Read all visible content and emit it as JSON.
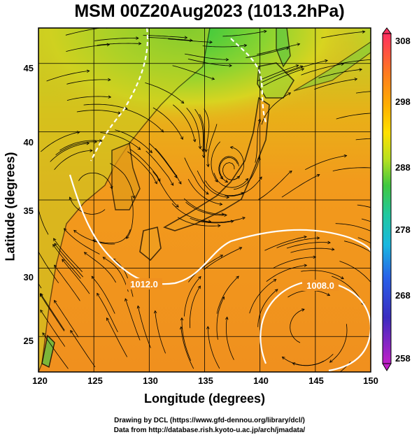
{
  "title": "MSM 00Z20Aug2023 (1013.2hPa)",
  "map": {
    "xlabel": "Longitude (degrees)",
    "ylabel": "Latitude  (degrees)",
    "lon_range": [
      120,
      150
    ],
    "lat_range": [
      22.4,
      47.6
    ],
    "lon_ticks": [
      "120",
      "125",
      "130",
      "135",
      "140",
      "145",
      "150"
    ],
    "lat_ticks": [
      "45",
      "40",
      "35",
      "30",
      "25"
    ],
    "contour_labels": [
      "1012.0",
      "1008.0"
    ]
  },
  "colorbar": {
    "ticks": [
      "308",
      "298",
      "288",
      "278",
      "268",
      "258"
    ],
    "colors": [
      "#ff3060",
      "#ff7a1e",
      "#ffb000",
      "#ffe000",
      "#c8e020",
      "#52c840",
      "#20c890",
      "#18b8e0",
      "#2860e8",
      "#3a2cc0",
      "#c020c8"
    ]
  },
  "credits": {
    "line1": "Drawing by DCL (https://www.gfd-dennou.org/library/dcl/)",
    "line2": "Data from http://database.rish.kyoto-u.ac.jp/arch/jmadata/"
  }
}
